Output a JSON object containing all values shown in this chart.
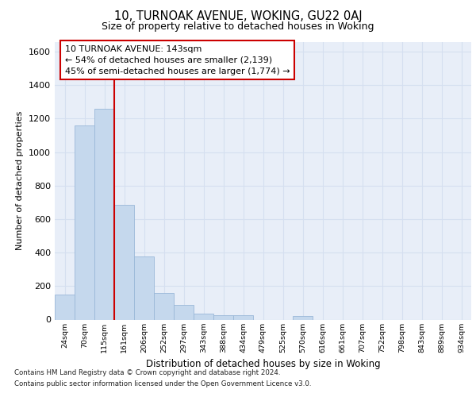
{
  "title1": "10, TURNOAK AVENUE, WOKING, GU22 0AJ",
  "title2": "Size of property relative to detached houses in Woking",
  "xlabel": "Distribution of detached houses by size in Woking",
  "ylabel": "Number of detached properties",
  "categories": [
    "24sqm",
    "70sqm",
    "115sqm",
    "161sqm",
    "206sqm",
    "252sqm",
    "297sqm",
    "343sqm",
    "388sqm",
    "434sqm",
    "479sqm",
    "525sqm",
    "570sqm",
    "616sqm",
    "661sqm",
    "707sqm",
    "752sqm",
    "798sqm",
    "843sqm",
    "889sqm",
    "934sqm"
  ],
  "values": [
    150,
    1160,
    1260,
    685,
    375,
    160,
    90,
    35,
    25,
    25,
    0,
    0,
    20,
    0,
    0,
    0,
    0,
    0,
    0,
    0,
    0
  ],
  "bar_color": "#c5d8ed",
  "bar_edge_color": "#9ab8d8",
  "bar_linewidth": 0.6,
  "vline_color": "#cc0000",
  "vline_x": 2.5,
  "ylim": [
    0,
    1660
  ],
  "yticks": [
    0,
    200,
    400,
    600,
    800,
    1000,
    1200,
    1400,
    1600
  ],
  "annotation_text": "10 TURNOAK AVENUE: 143sqm\n← 54% of detached houses are smaller (2,139)\n45% of semi-detached houses are larger (1,774) →",
  "annotation_box_facecolor": "#ffffff",
  "annotation_box_edgecolor": "#cc0000",
  "footer1": "Contains HM Land Registry data © Crown copyright and database right 2024.",
  "footer2": "Contains public sector information licensed under the Open Government Licence v3.0.",
  "grid_color": "#d5dff0",
  "bg_color": "#e8eef8"
}
